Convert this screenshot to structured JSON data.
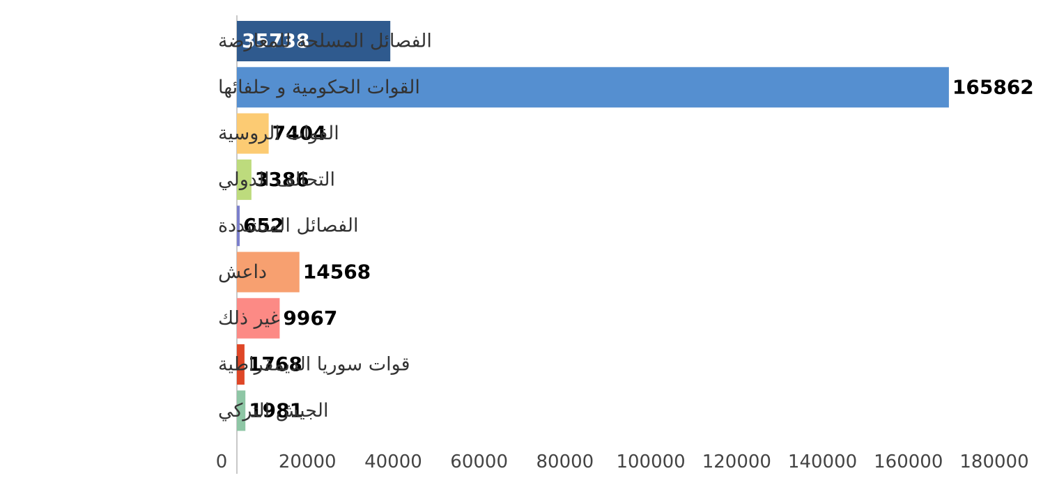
{
  "chart_data": {
    "type": "bar",
    "orientation": "horizontal",
    "title": "",
    "xlabel": "",
    "ylabel": "",
    "xlim": [
      0,
      180000
    ],
    "x_ticks": [
      "0",
      "20000",
      "40000",
      "60000",
      "80000",
      "100000",
      "120000",
      "140000",
      "160000",
      "180000"
    ],
    "grid": false,
    "legend": "none",
    "categories": [
      "الفصائل المسلحة للمعارضة",
      "القوات الحكومية و حلفائها",
      "القوات الروسية",
      "التحالف الدولي",
      "الفصائل المتشددة",
      "داعش",
      "غير ذلك",
      "قوات سوريا الديمقراطية",
      "الجيش التركي"
    ],
    "values": [
      35738,
      165862,
      7404,
      3386,
      652,
      14568,
      9967,
      1768,
      1981
    ],
    "value_labels": [
      "35738",
      "165862",
      "7404",
      "3386",
      "652",
      "14568",
      "9967",
      "1768",
      "1981"
    ],
    "colors": [
      "#2f5a8e",
      "#558fd0",
      "#fccb73",
      "#bddb7d",
      "#7b7fcc",
      "#f7a070",
      "#fc8a85",
      "#df4727",
      "#8ec6a5"
    ],
    "value_label_colors": [
      "#ffffff",
      "#000000",
      "#000000",
      "#000000",
      "#000000",
      "#000000",
      "#000000",
      "#000000",
      "#000000"
    ]
  }
}
